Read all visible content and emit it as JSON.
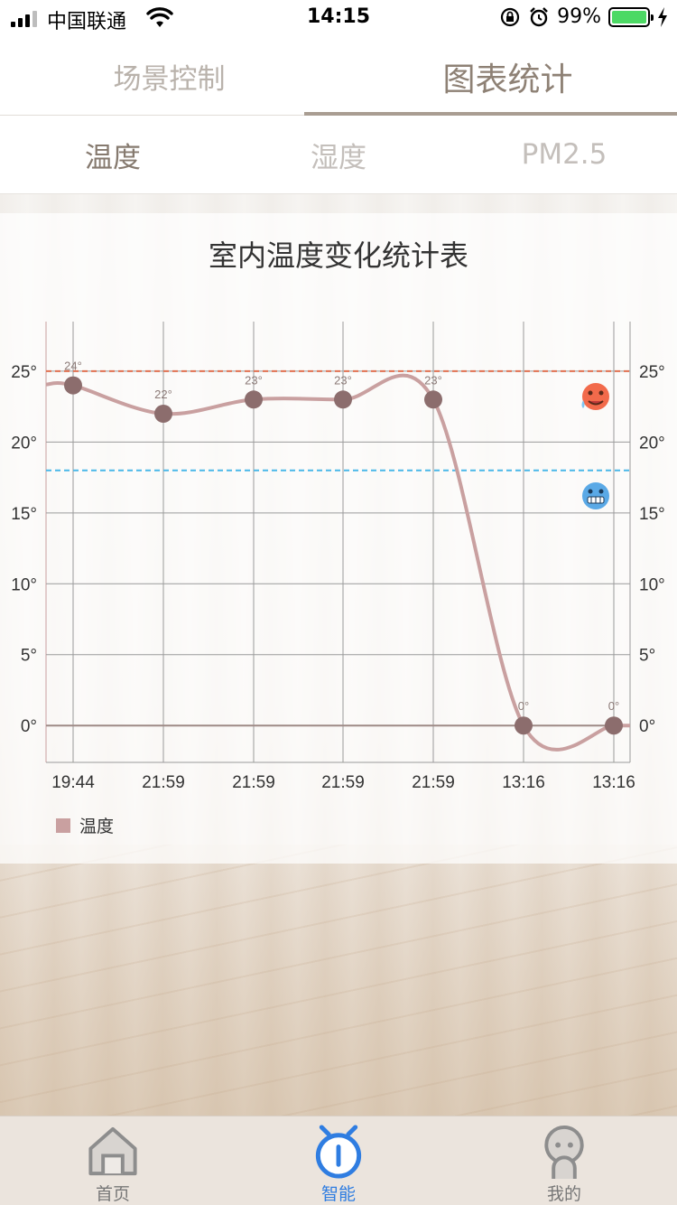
{
  "status_bar": {
    "carrier": "中国联通",
    "time": "14:15",
    "battery": "99%"
  },
  "main_tabs": [
    {
      "label": "场景控制",
      "active": false
    },
    {
      "label": "图表统计",
      "active": true
    }
  ],
  "sub_tabs": [
    {
      "label": "温度",
      "active": true
    },
    {
      "label": "湿度",
      "active": false
    },
    {
      "label": "PM2.5",
      "active": false
    }
  ],
  "chart_data": {
    "type": "line",
    "title": "室内温度变化统计表",
    "categories": [
      "19:44",
      "21:59",
      "21:59",
      "21:59",
      "21:59",
      "13:16",
      "13:16"
    ],
    "series": [
      {
        "name": "温度",
        "values": [
          24,
          22,
          23,
          23,
          23,
          0,
          0
        ],
        "color": "#c9a0a0"
      }
    ],
    "point_labels": [
      "24°",
      "22°",
      "23°",
      "23°",
      "23°",
      "0°",
      "0°"
    ],
    "y_ticks": [
      "0°",
      "5°",
      "10°",
      "15°",
      "20°",
      "25°"
    ],
    "ylim": [
      -2.6,
      28.5
    ],
    "limit_lines": [
      {
        "value": 25,
        "color": "#e07050",
        "icon": "hot-face-icon"
      },
      {
        "value": 18,
        "color": "#4ab8e8",
        "icon": "cold-face-icon"
      }
    ],
    "grid": true,
    "legend": "bottom-left"
  },
  "bottom_nav": [
    {
      "label": "首页",
      "icon": "home-icon",
      "active": false
    },
    {
      "label": "智能",
      "icon": "smart-icon",
      "active": true
    },
    {
      "label": "我的",
      "icon": "profile-icon",
      "active": false
    }
  ]
}
